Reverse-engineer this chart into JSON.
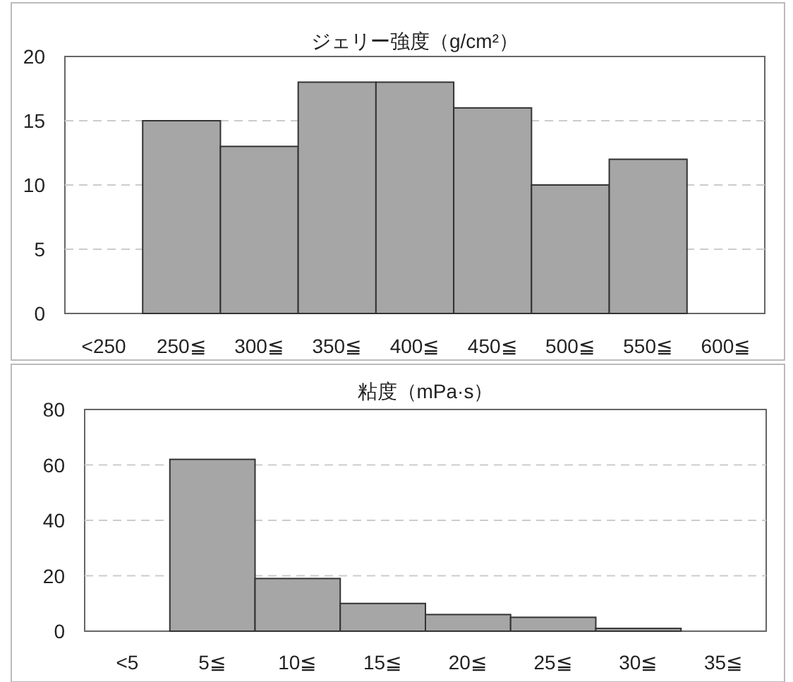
{
  "chart_data": [
    {
      "type": "bar",
      "title": "ジェリー強度（g/cm²）",
      "categories": [
        "<250",
        "250≦",
        "300≦",
        "350≦",
        "400≦",
        "450≦",
        "500≦",
        "550≦",
        "600≦"
      ],
      "values": [
        0,
        15,
        13,
        18,
        18,
        16,
        10,
        12,
        0
      ],
      "color": "#a6a6a6",
      "ylim": [
        0,
        20
      ],
      "yticks": [
        0,
        5,
        10,
        15,
        20
      ],
      "grid": "y"
    },
    {
      "type": "bar",
      "title": "粘度（mPa·s）",
      "categories": [
        "<5",
        "5≦",
        "10≦",
        "15≦",
        "20≦",
        "25≦",
        "30≦",
        "35≦"
      ],
      "values": [
        0,
        62,
        19,
        10,
        6,
        5,
        1,
        0
      ],
      "color": "#a6a6a6",
      "ylim": [
        0,
        80
      ],
      "yticks": [
        0,
        20,
        40,
        60,
        80
      ],
      "grid": "y"
    }
  ]
}
